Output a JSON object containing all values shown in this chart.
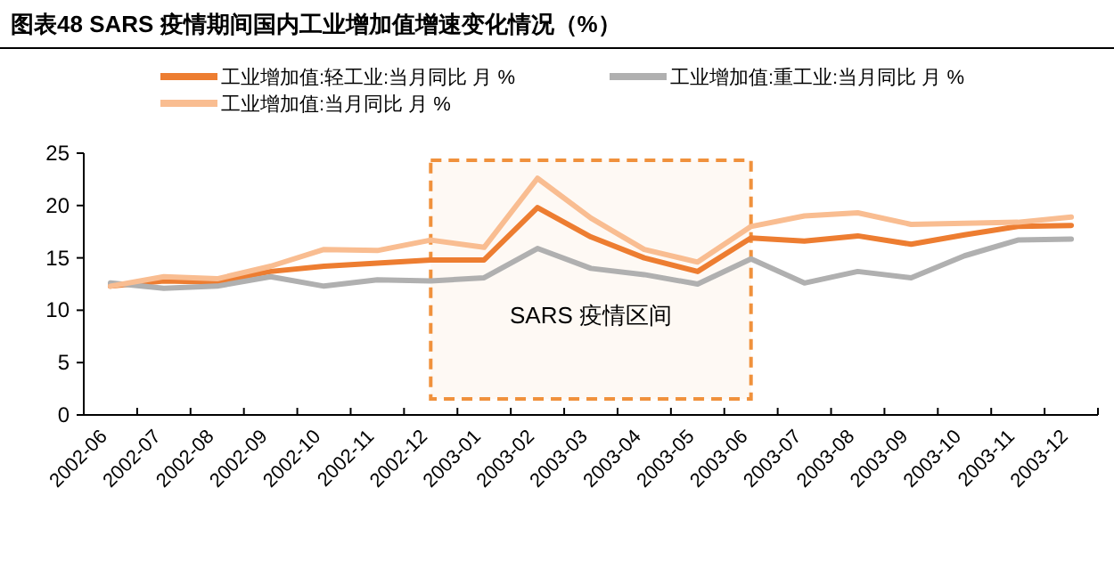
{
  "chart_data": {
    "type": "line",
    "title": "图表48    SARS 疫情期间国内工业增加值增速变化情况（%）",
    "categories": [
      "2002-06",
      "2002-07",
      "2002-08",
      "2002-09",
      "2002-10",
      "2002-11",
      "2002-12",
      "2003-01",
      "2003-02",
      "2003-03",
      "2003-04",
      "2003-05",
      "2003-06",
      "2003-07",
      "2003-08",
      "2003-09",
      "2003-10",
      "2003-11",
      "2003-12"
    ],
    "series": [
      {
        "name": "工业增加值:轻工业:当月同比 月 %",
        "color": "#ed7d31",
        "values": [
          12.3,
          12.8,
          12.7,
          13.7,
          14.2,
          14.5,
          14.8,
          14.8,
          19.8,
          17.0,
          15.0,
          13.7,
          16.9,
          16.6,
          17.1,
          16.3,
          17.2,
          18.0,
          18.1
        ]
      },
      {
        "name": "工业增加值:重工业:当月同比 月 %",
        "color": "#b0b0b0",
        "values": [
          12.6,
          12.1,
          12.3,
          13.2,
          12.3,
          12.9,
          12.8,
          13.1,
          15.9,
          14.0,
          13.4,
          12.5,
          14.9,
          12.6,
          13.7,
          13.1,
          15.2,
          16.7,
          16.8
        ]
      },
      {
        "name": "工业增加值:当月同比 月 %",
        "color": "#f9bd91",
        "values": [
          12.3,
          13.2,
          13.0,
          14.2,
          15.8,
          15.7,
          16.7,
          16.0,
          22.6,
          18.8,
          15.8,
          14.6,
          18.0,
          19.0,
          19.3,
          18.2,
          18.3,
          18.4,
          18.9
        ]
      }
    ],
    "ylim": [
      0,
      25
    ],
    "yticks": [
      0,
      5,
      10,
      15,
      20,
      25
    ],
    "grid": false,
    "legend": "top",
    "line_style": "solid",
    "marker": "none",
    "bands": [
      {
        "axis": "x",
        "from": "2002-12",
        "to": "2003-06",
        "label": "SARS 疫情区间",
        "color": "#f0913c"
      }
    ]
  }
}
